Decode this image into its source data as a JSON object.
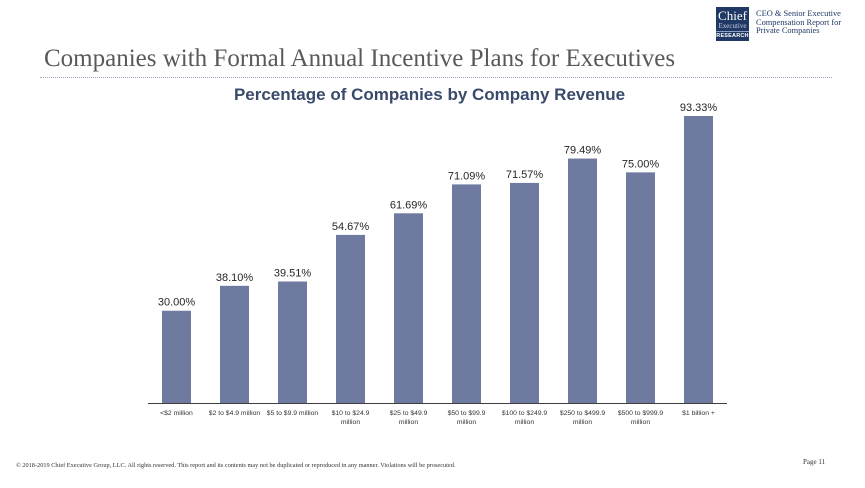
{
  "header": {
    "logo": {
      "line1": "Chief",
      "line2": "Executive",
      "line3": "RESEARCH",
      "bg_color": "#1f3864"
    },
    "report_title": [
      "CEO & Senior Executive",
      "Compensation Report for",
      "Private Companies"
    ],
    "page_title": "Companies with Formal Annual Incentive Plans for Executives"
  },
  "chart_data": {
    "type": "bar",
    "title": "Percentage of Companies by Company Revenue",
    "xlabel": "",
    "ylabel": "",
    "ylim": [
      0,
      100
    ],
    "grid": false,
    "legend": "none",
    "bar_color": "#6f7aa0",
    "categories": [
      [
        "<$2 million"
      ],
      [
        "$2 to $4.9 million"
      ],
      [
        "$5 to $9.9 million"
      ],
      [
        "$10 to $24.9",
        "million"
      ],
      [
        "$25 to $49.9",
        "million"
      ],
      [
        "$50 to $99.9",
        "million"
      ],
      [
        "$100 to $249.9",
        "million"
      ],
      [
        "$250 to $499.9",
        "million"
      ],
      [
        "$500 to $999.9",
        "million"
      ],
      [
        "$1 billion +"
      ]
    ],
    "values": [
      30.0,
      38.1,
      39.51,
      54.67,
      61.69,
      71.09,
      71.57,
      79.49,
      75.0,
      93.33
    ],
    "data_labels": [
      "30.00%",
      "38.10%",
      "39.51%",
      "54.67%",
      "61.69%",
      "71.09%",
      "71.57%",
      "79.49%",
      "75.00%",
      "93.33%"
    ]
  },
  "footer": {
    "copyright": "© 2018-2019 Chief Executive Group, LLC. All rights reserved. This report and its contents may not be duplicated or reproduced in any manner. Violations will be prosecuted.",
    "page": "Page 11"
  }
}
